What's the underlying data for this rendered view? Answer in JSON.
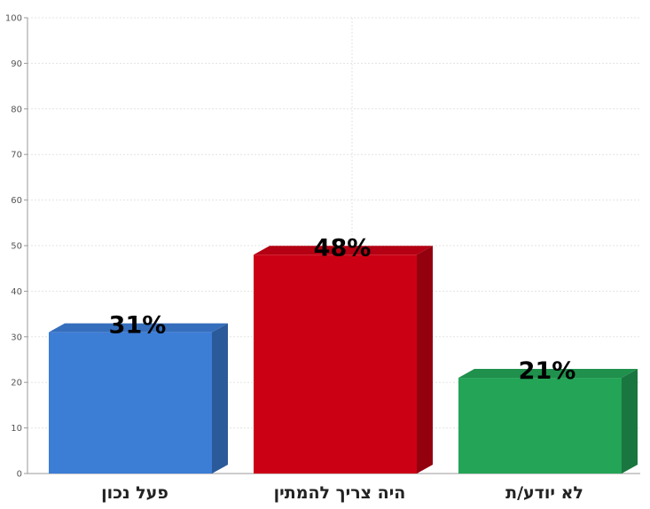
{
  "chart_data": {
    "type": "bar",
    "categories": [
      "פעל נכון",
      "היה צריך להמתין",
      "לא יודע/ת"
    ],
    "values": [
      31,
      48,
      21
    ],
    "value_labels": [
      "31%",
      "48%",
      "21%"
    ],
    "colors": [
      "#3c7dd6",
      "#cc0014",
      "#24a457"
    ],
    "ylim": [
      0,
      100
    ],
    "yticks": [
      "0",
      "10",
      "20",
      "30",
      "40",
      "50",
      "60",
      "70",
      "80",
      "90",
      "100"
    ],
    "grid": true,
    "title": "",
    "xlabel": "",
    "ylabel": ""
  }
}
